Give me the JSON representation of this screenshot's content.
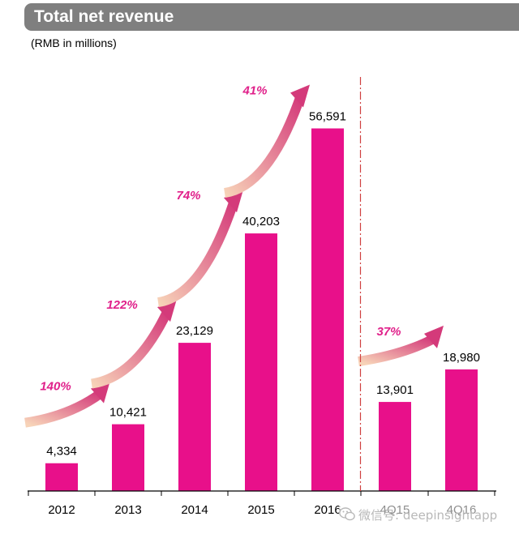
{
  "header": {
    "title": "Total net revenue",
    "unit": "(RMB in millions)"
  },
  "colors": {
    "bar": "#e8108a",
    "arrow_start": "#f7d3b8",
    "arrow_end": "#d43a7a",
    "growth_text": "#e0208a",
    "divider": "#d04040",
    "title_bg": "#7f7f7f"
  },
  "chart_data": {
    "type": "bar",
    "title": "Total net revenue",
    "ylabel": "(RMB in millions)",
    "categories": [
      "2012",
      "2013",
      "2014",
      "2015",
      "2016",
      "4Q15",
      "4Q16"
    ],
    "values": [
      4334,
      10421,
      23129,
      40203,
      56591,
      13901,
      18980
    ],
    "value_labels": [
      "4,334",
      "10,421",
      "23,129",
      "40,203",
      "56,591",
      "13,901",
      "18,980"
    ],
    "growth_rates": [
      {
        "label": "140%",
        "from": "2012",
        "to": "2013"
      },
      {
        "label": "122%",
        "from": "2013",
        "to": "2014"
      },
      {
        "label": "74%",
        "from": "2014",
        "to": "2015"
      },
      {
        "label": "41%",
        "from": "2015",
        "to": "2016"
      },
      {
        "label": "37%",
        "from": "4Q15",
        "to": "4Q16"
      }
    ],
    "divider_after": "2016",
    "ylim": [
      0,
      60000
    ],
    "grid": false
  },
  "watermark": {
    "icon": "wechat-icon",
    "text": "微信号: deepinsightapp"
  }
}
